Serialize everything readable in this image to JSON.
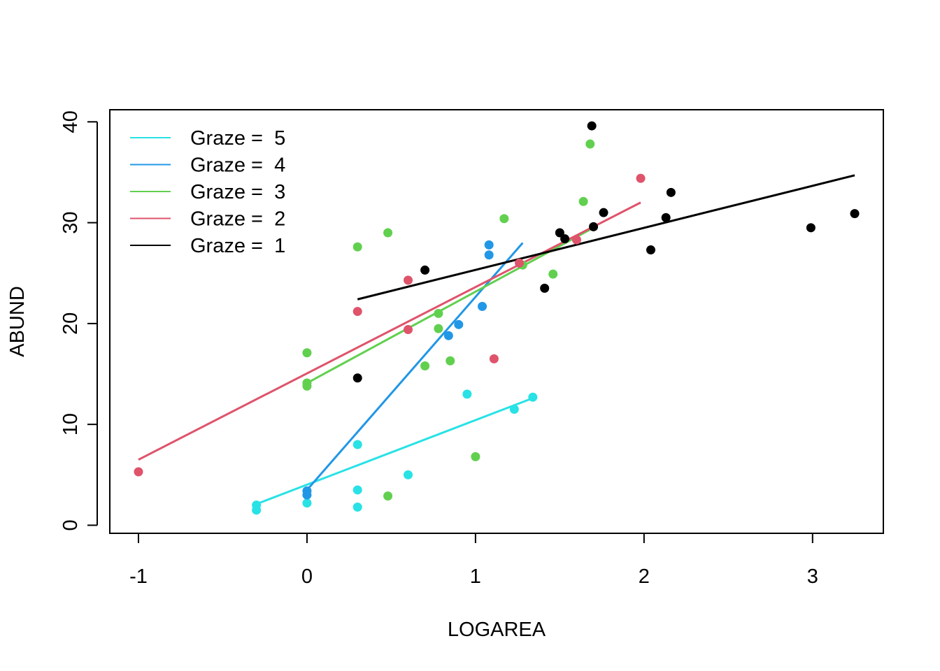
{
  "chart_data": {
    "type": "scatter",
    "title": "",
    "xlabel": "LOGAREA",
    "ylabel": "ABUND",
    "xlim": [
      -1.17,
      3.42
    ],
    "ylim": [
      -0.8,
      41.2
    ],
    "xticks": [
      -1,
      0,
      1,
      2,
      3
    ],
    "yticks": [
      0,
      10,
      20,
      30,
      40
    ],
    "grid": false,
    "legend_position": "top-left",
    "series": [
      {
        "name": "Graze =  5",
        "color": "#28E2E5",
        "points": [
          [
            -0.3,
            2.0
          ],
          [
            -0.3,
            1.5
          ],
          [
            0.0,
            2.2
          ],
          [
            0.3,
            8.0
          ],
          [
            0.3,
            3.5
          ],
          [
            0.3,
            1.8
          ],
          [
            0.6,
            5.0
          ],
          [
            0.95,
            13.0
          ],
          [
            1.23,
            11.5
          ],
          [
            1.34,
            12.7
          ]
        ],
        "fit": [
          [
            -0.3,
            2.1
          ],
          [
            1.34,
            12.6
          ]
        ]
      },
      {
        "name": "Graze =  4",
        "color": "#2297E6",
        "points": [
          [
            0.0,
            3.4
          ],
          [
            0.0,
            3.0
          ],
          [
            0.84,
            18.8
          ],
          [
            0.9,
            19.9
          ],
          [
            1.04,
            21.7
          ],
          [
            1.08,
            27.8
          ],
          [
            1.08,
            26.8
          ]
        ],
        "fit": [
          [
            0.0,
            3.5
          ],
          [
            1.28,
            28.0
          ]
        ]
      },
      {
        "name": "Graze =  3",
        "color": "#61D04F",
        "points": [
          [
            0.0,
            17.1
          ],
          [
            0.0,
            14.1
          ],
          [
            0.0,
            13.8
          ],
          [
            0.3,
            27.6
          ],
          [
            0.48,
            29.0
          ],
          [
            0.48,
            2.9
          ],
          [
            0.7,
            15.8
          ],
          [
            0.78,
            21.0
          ],
          [
            0.78,
            19.5
          ],
          [
            0.85,
            16.3
          ],
          [
            1.0,
            6.8
          ],
          [
            1.17,
            30.4
          ],
          [
            1.28,
            25.8
          ],
          [
            1.46,
            24.9
          ],
          [
            1.64,
            32.1
          ],
          [
            1.68,
            37.8
          ]
        ],
        "fit": [
          [
            0.0,
            14.1
          ],
          [
            1.7,
            29.5
          ]
        ]
      },
      {
        "name": "Graze =  2",
        "color": "#DF536B",
        "points": [
          [
            -1.0,
            5.3
          ],
          [
            0.3,
            21.2
          ],
          [
            0.6,
            24.3
          ],
          [
            0.6,
            19.4
          ],
          [
            1.11,
            16.5
          ],
          [
            1.26,
            26.0
          ],
          [
            1.6,
            28.3
          ],
          [
            1.98,
            34.4
          ]
        ],
        "fit": [
          [
            -1.0,
            6.5
          ],
          [
            1.98,
            32.0
          ]
        ]
      },
      {
        "name": "Graze =  1",
        "color": "#000000",
        "points": [
          [
            0.3,
            14.6
          ],
          [
            0.7,
            25.3
          ],
          [
            1.41,
            23.5
          ],
          [
            1.5,
            29.0
          ],
          [
            1.53,
            28.4
          ],
          [
            1.69,
            39.6
          ],
          [
            1.7,
            29.6
          ],
          [
            1.76,
            31.0
          ],
          [
            2.04,
            27.3
          ],
          [
            2.13,
            30.5
          ],
          [
            2.16,
            33.0
          ],
          [
            2.99,
            29.5
          ],
          [
            3.25,
            30.9
          ]
        ],
        "fit": [
          [
            0.3,
            22.4
          ],
          [
            3.25,
            34.7
          ]
        ]
      }
    ]
  }
}
